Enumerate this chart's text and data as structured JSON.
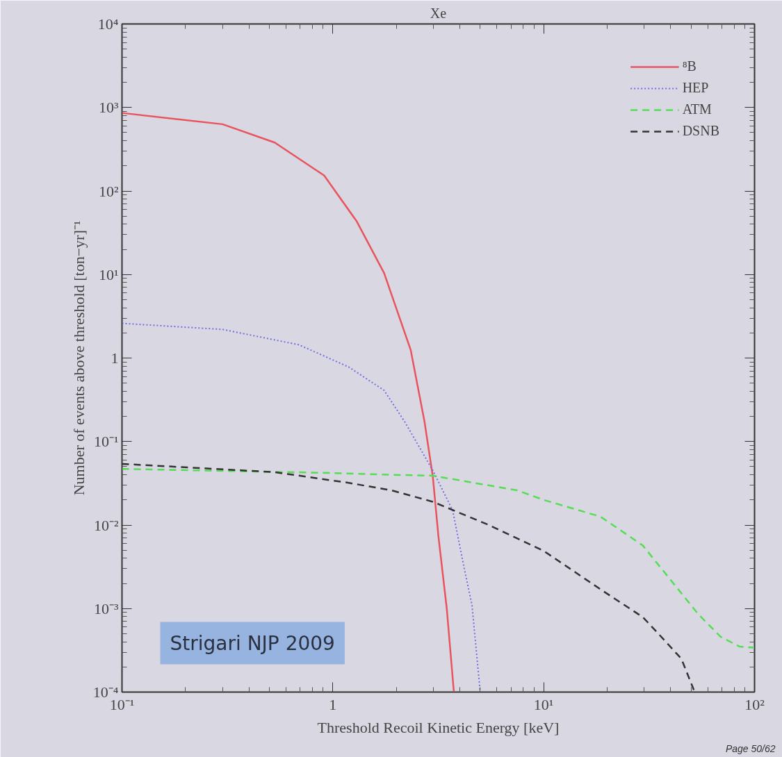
{
  "chart_data": {
    "type": "line",
    "title": "Xe",
    "xlabel": "Threshold Recoil Kinetic Energy [keV]",
    "ylabel": "Number of events above threshold [ton−yr]⁻¹",
    "log": "xy",
    "grid": false,
    "legend": "top right",
    "xlim": [
      0.1,
      100
    ],
    "ylim": [
      0.0001,
      10000
    ],
    "xticks": [
      {
        "value": 0.1,
        "label": "10⁻¹"
      },
      1,
      {
        "value": 10,
        "label": "10¹"
      },
      {
        "value": 100,
        "label": "10²"
      }
    ],
    "yticks": [
      {
        "value": 0.0001,
        "label": "10⁻⁴"
      },
      {
        "value": 0.001,
        "label": "10⁻³"
      },
      {
        "value": 0.01,
        "label": "10⁻²"
      },
      {
        "value": 0.1,
        "label": "10⁻¹"
      },
      1,
      {
        "value": 10,
        "label": "10¹"
      },
      {
        "value": 100,
        "label": "10²"
      },
      {
        "value": 1000,
        "label": "10³"
      },
      {
        "value": 10000,
        "label": "10⁴"
      }
    ],
    "annotations": [
      "Strigari NJP 2009",
      "Page 50/62"
    ],
    "series": [
      {
        "name": "⁸B",
        "color": "#e8545e",
        "line_style": "solid",
        "x": [
          0.1,
          0.3,
          0.53,
          0.91,
          1.3,
          1.75,
          2.34,
          2.72,
          2.98,
          3.17,
          3.47,
          3.75
        ],
        "values": [
          860,
          630,
          380,
          153,
          43,
          10.4,
          1.25,
          0.174,
          0.038,
          0.0072,
          0.001,
          0.0001
        ]
      },
      {
        "name": "HEP",
        "color": "#7070e0",
        "line_style": "dotted",
        "x": [
          0.1,
          0.3,
          0.69,
          1.19,
          1.75,
          2.2,
          2.98,
          3.7,
          4.17,
          4.57,
          5.0
        ],
        "values": [
          2.6,
          2.2,
          1.44,
          0.78,
          0.41,
          0.17,
          0.045,
          0.015,
          0.0033,
          0.0011,
          0.0001
        ]
      },
      {
        "name": "ATM",
        "color": "#55dd55",
        "line_style": "dashed",
        "x": [
          0.1,
          1,
          1.9,
          2.98,
          7.5,
          10,
          18.6,
          29.5,
          40,
          54,
          69,
          85,
          100
        ],
        "values": [
          0.047,
          0.042,
          0.04,
          0.039,
          0.026,
          0.02,
          0.0126,
          0.0057,
          0.0022,
          0.00086,
          0.00046,
          0.00035,
          0.00034
        ]
      },
      {
        "name": "DSNB",
        "color": "#333333",
        "line_style": "dashed",
        "x": [
          0.1,
          0.53,
          1.19,
          1.9,
          2.98,
          5.5,
          10,
          18.6,
          29.5,
          35,
          45,
          52
        ],
        "values": [
          0.054,
          0.043,
          0.032,
          0.026,
          0.019,
          0.01,
          0.0049,
          0.0017,
          0.00079,
          0.0005,
          0.00025,
          0.0001
        ]
      }
    ]
  }
}
